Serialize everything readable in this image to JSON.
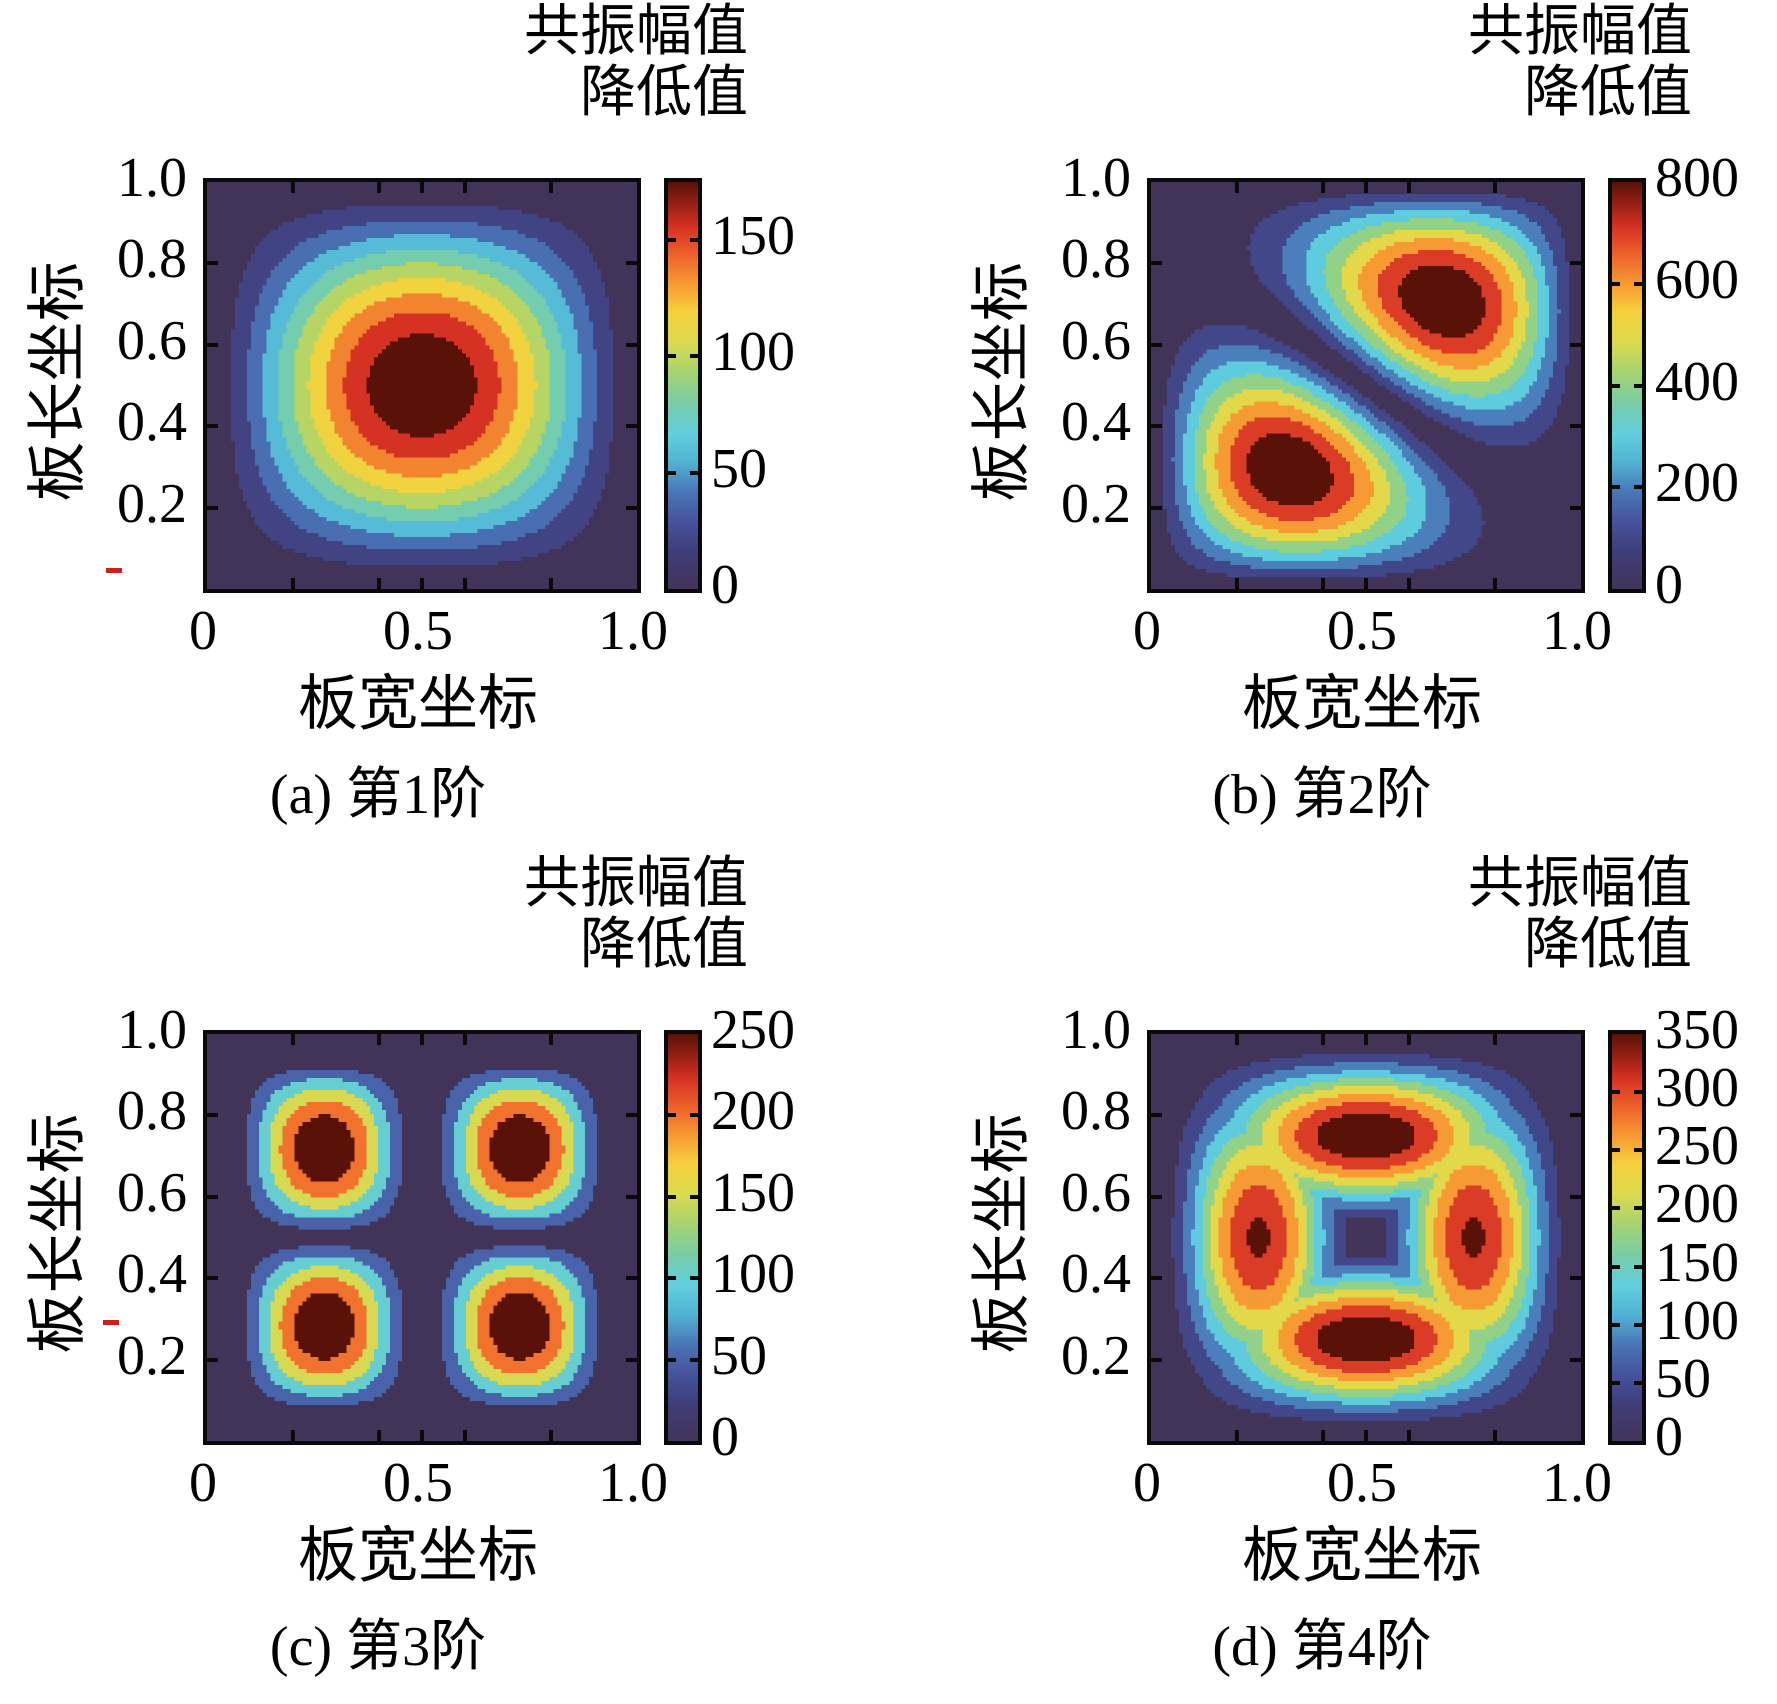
{
  "figure": {
    "colorbar_title_line1": "共振幅值",
    "colorbar_title_line2": "降低值",
    "xlabel": "板宽坐标",
    "ylabel": "板长坐标",
    "x_ticks": [
      "0",
      "0.5",
      "1.0"
    ],
    "y_ticks": [
      "1.0",
      "0.8",
      "0.6",
      "0.4",
      "0.2"
    ]
  },
  "colormap": {
    "description": "jet-like colormap from dark purple (low) to dark maroon (high)",
    "stops": [
      [
        0.0,
        "#423459"
      ],
      [
        0.09,
        "#3f3d78"
      ],
      [
        0.17,
        "#46549e"
      ],
      [
        0.24,
        "#4a77b7"
      ],
      [
        0.31,
        "#51b2d3"
      ],
      [
        0.38,
        "#5fcede"
      ],
      [
        0.46,
        "#79cda4"
      ],
      [
        0.54,
        "#abd46c"
      ],
      [
        0.61,
        "#ddda4d"
      ],
      [
        0.68,
        "#f6d13c"
      ],
      [
        0.75,
        "#f69a33"
      ],
      [
        0.82,
        "#ee622a"
      ],
      [
        0.89,
        "#d63123"
      ],
      [
        0.955,
        "#8c1d12"
      ],
      [
        1.0,
        "#591108"
      ]
    ]
  },
  "chart_data": [
    {
      "type": "heatmap",
      "panel": "a",
      "caption": "(a) 第1阶",
      "xlabel": "板宽坐标",
      "ylabel": "板长坐标",
      "x_range": [
        0,
        1
      ],
      "y_range": [
        0,
        1
      ],
      "x_tick_labels": [
        "0",
        "0.5",
        "1.0"
      ],
      "y_tick_labels": [
        "1.0",
        "0.8",
        "0.6",
        "0.4",
        "0.2"
      ],
      "colorbar": {
        "title": "共振幅值降低值",
        "max": 175,
        "tick_values": [
          0,
          50,
          100,
          150
        ]
      },
      "contour_levels": 10,
      "peaks": [
        {
          "x": 0.5,
          "y": 0.5,
          "value": 175
        }
      ],
      "model": {
        "name": "single",
        "exp": 1.3
      }
    },
    {
      "type": "heatmap",
      "panel": "b",
      "caption": "(b) 第2阶",
      "xlabel": "板宽坐标",
      "ylabel": "板长坐标",
      "x_range": [
        0,
        1
      ],
      "y_range": [
        0,
        1
      ],
      "x_tick_labels": [
        "0",
        "0.5",
        "1.0"
      ],
      "y_tick_labels": [
        "1.0",
        "0.8",
        "0.6",
        "0.4",
        "0.2"
      ],
      "colorbar": {
        "title": "共振幅值降低值",
        "max": 800,
        "tick_values": [
          0,
          200,
          400,
          600,
          800
        ]
      },
      "contour_levels": 9,
      "peaks": [
        {
          "x": 0.37,
          "y": 0.3,
          "value": 800
        },
        {
          "x": 0.63,
          "y": 0.7,
          "value": 800
        }
      ],
      "model": {
        "name": "diag",
        "k": 1.3,
        "exp": 1.1
      }
    },
    {
      "type": "heatmap",
      "panel": "c",
      "caption": "(c) 第3阶",
      "xlabel": "板宽坐标",
      "ylabel": "板长坐标",
      "x_range": [
        0,
        1
      ],
      "y_range": [
        0,
        1
      ],
      "x_tick_labels": [
        "0",
        "0.5",
        "1.0"
      ],
      "y_tick_labels": [
        "1.0",
        "0.8",
        "0.6",
        "0.4",
        "0.2"
      ],
      "colorbar": {
        "title": "共振幅值降低值",
        "max": 250,
        "tick_values": [
          0,
          50,
          100,
          150,
          200,
          250
        ]
      },
      "contour_levels": 6,
      "peaks": [
        {
          "x": 0.27,
          "y": 0.28,
          "value": 250
        },
        {
          "x": 0.73,
          "y": 0.28,
          "value": 250
        },
        {
          "x": 0.27,
          "y": 0.72,
          "value": 250
        },
        {
          "x": 0.73,
          "y": 0.72,
          "value": 250
        }
      ],
      "model": {
        "name": "quad",
        "sx": 1.1,
        "sy": 1.15,
        "px": 1.5,
        "py": 0.95
      }
    },
    {
      "type": "heatmap",
      "panel": "d",
      "caption": "(d) 第4阶",
      "xlabel": "板宽坐标",
      "ylabel": "板长坐标",
      "x_range": [
        0,
        1
      ],
      "y_range": [
        0,
        1
      ],
      "x_tick_labels": [
        "0",
        "0.5",
        "1.0"
      ],
      "y_tick_labels": [
        "1.0",
        "0.8",
        "0.6",
        "0.4",
        "0.2"
      ],
      "colorbar": {
        "title": "共振幅值降低值",
        "max": 350,
        "tick_values": [
          0,
          50,
          100,
          150,
          200,
          250,
          300,
          350
        ]
      },
      "contour_levels": 9,
      "peaks": [
        {
          "x": 0.5,
          "y": 0.78,
          "value": 350
        },
        {
          "x": 0.5,
          "y": 0.22,
          "value": 350
        },
        {
          "x": 0.25,
          "y": 0.5,
          "value": 318
        },
        {
          "x": 0.75,
          "y": 0.5,
          "value": 318
        }
      ],
      "model": {
        "name": "cross",
        "a": 350,
        "b": 318,
        "exp": 1.8
      }
    }
  ]
}
